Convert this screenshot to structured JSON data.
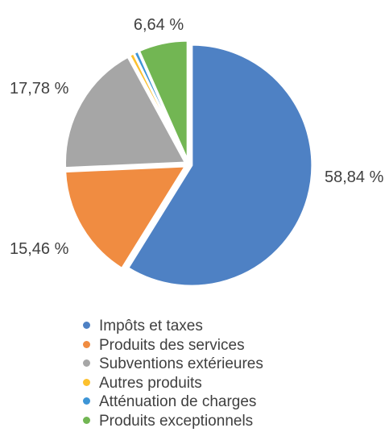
{
  "chart_data": {
    "type": "pie",
    "title": "",
    "series": [
      {
        "name": "Impôts et taxes",
        "value": 58.84,
        "label": "58,84 %",
        "color": "#4e81c4"
      },
      {
        "name": "Produits des services",
        "value": 15.46,
        "label": "15,46 %",
        "color": "#f08c41"
      },
      {
        "name": "Subventions extérieures",
        "value": 17.78,
        "label": "17,78 %",
        "color": "#a6a6a6"
      },
      {
        "name": "Autres produits",
        "value": 0.64,
        "label": "",
        "color": "#fcc12e"
      },
      {
        "name": "Atténuation de charges",
        "value": 0.64,
        "label": "",
        "color": "#3d95d6"
      },
      {
        "name": "Produits exceptionnels",
        "value": 6.64,
        "label": "6,64 %",
        "color": "#72b653"
      }
    ],
    "legend_position": "bottom"
  }
}
